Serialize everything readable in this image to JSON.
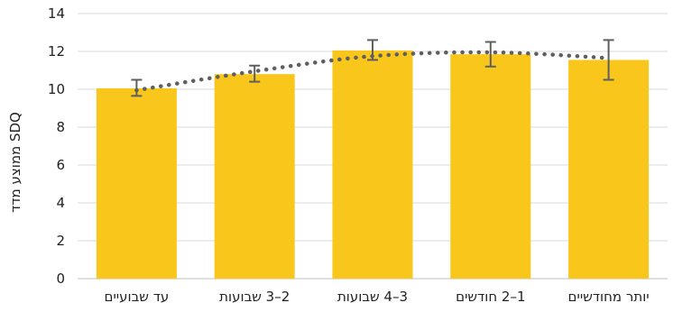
{
  "chart_data": {
    "type": "bar",
    "title": "",
    "xlabel": "",
    "ylabel": "ממוצע מדד SDQ",
    "ylim": [
      0,
      14
    ],
    "yticks": [
      0,
      2,
      4,
      6,
      8,
      10,
      12,
      14
    ],
    "grid": true,
    "legend": "none",
    "categories": [
      "עד שבועיים",
      "2–3 שבועות",
      "3–4 שבועות",
      "1–2 חודשים",
      "יותר מחודשיים"
    ],
    "series": [
      {
        "values": [
          10.05,
          10.8,
          12.05,
          11.85,
          11.55
        ],
        "error_low": [
          9.65,
          10.4,
          11.55,
          11.2,
          10.5
        ],
        "error_high": [
          10.5,
          11.25,
          12.6,
          12.5,
          12.6
        ],
        "color": "#F9C61B"
      }
    ],
    "trendline": {
      "type": "polynomial",
      "style": "dotted",
      "color": "#5f5f5f",
      "values": [
        9.95,
        10.95,
        11.75,
        11.95,
        11.65
      ]
    },
    "error_bar_color": "#5f5f5f",
    "grid_color": "#d9d9d9"
  }
}
